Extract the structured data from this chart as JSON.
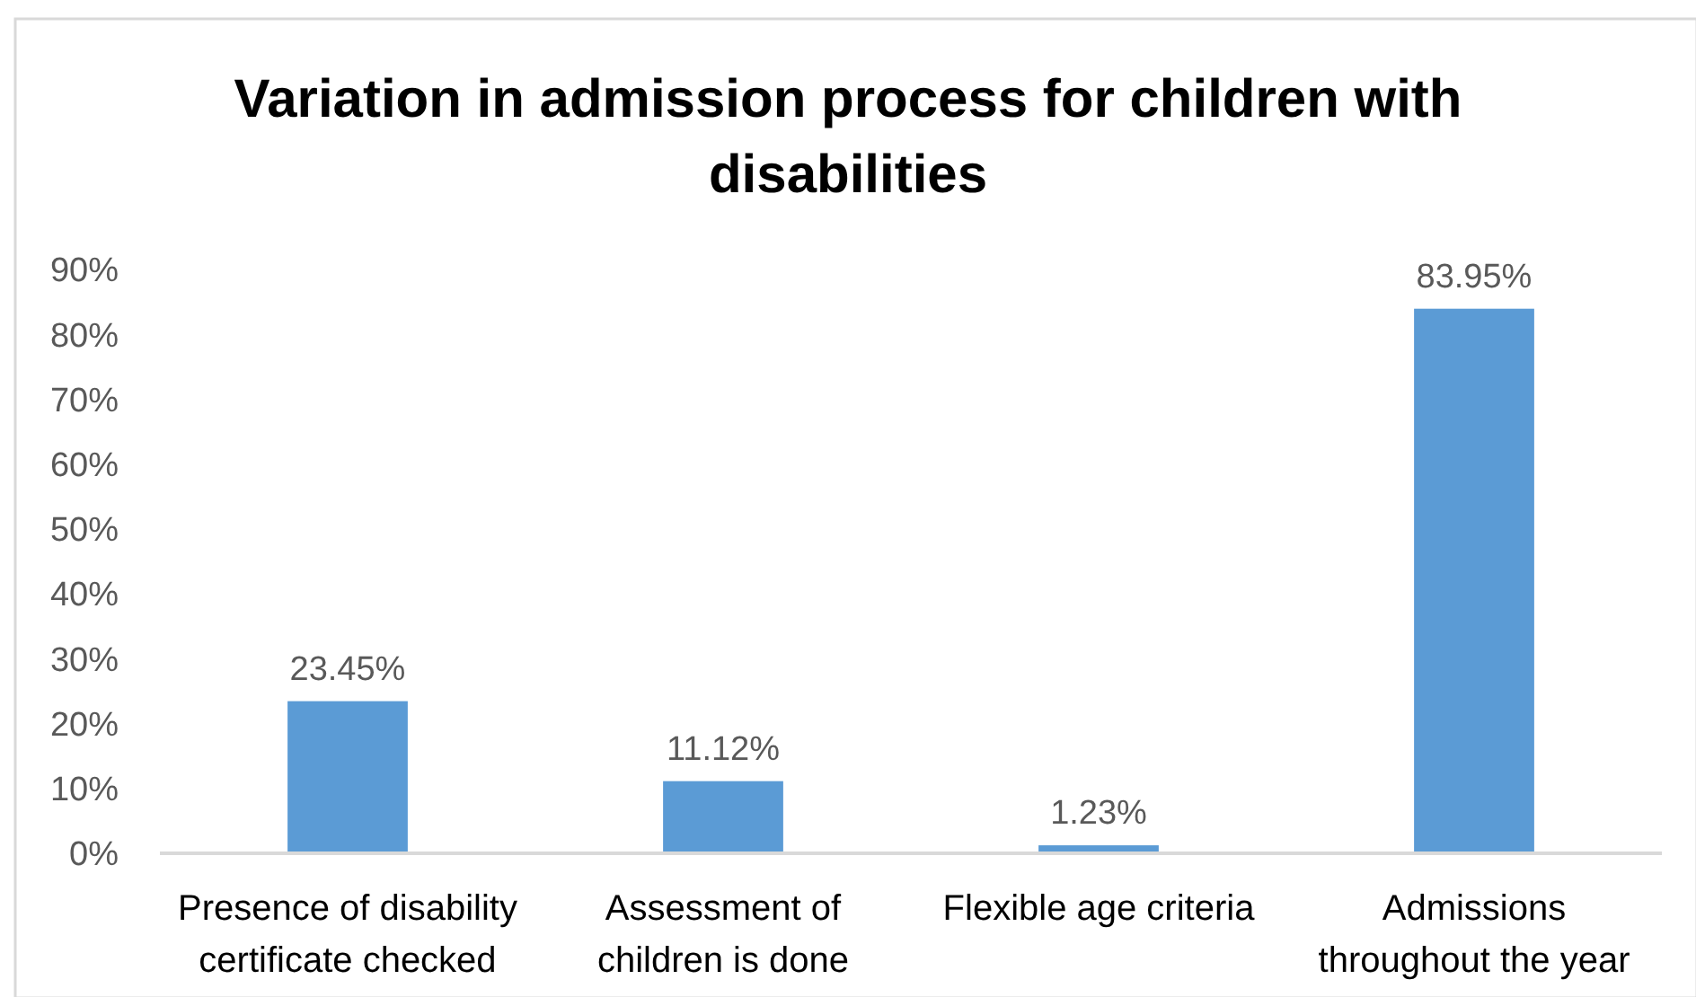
{
  "chart_data": {
    "type": "bar",
    "title": "Variation in admission process for children with disabilities",
    "categories": [
      "Presence of disability certificate checked",
      "Assessment of children is done",
      "Flexible age criteria",
      "Admissions throughout the year"
    ],
    "values": [
      23.45,
      11.12,
      1.23,
      83.95
    ],
    "value_labels": [
      "23.45%",
      "11.12%",
      "1.23%",
      "83.95%"
    ],
    "color": "#5b9bd5",
    "ylim": [
      0,
      90
    ],
    "yticks": [
      {
        "value": 0,
        "label": "0%"
      },
      {
        "value": 10,
        "label": "10%"
      },
      {
        "value": 20,
        "label": "20%"
      },
      {
        "value": 30,
        "label": "30%"
      },
      {
        "value": 40,
        "label": "40%"
      },
      {
        "value": 50,
        "label": "50%"
      },
      {
        "value": 60,
        "label": "60%"
      },
      {
        "value": 70,
        "label": "70%"
      },
      {
        "value": 80,
        "label": "80%"
      },
      {
        "value": 90,
        "label": "90%"
      }
    ]
  }
}
